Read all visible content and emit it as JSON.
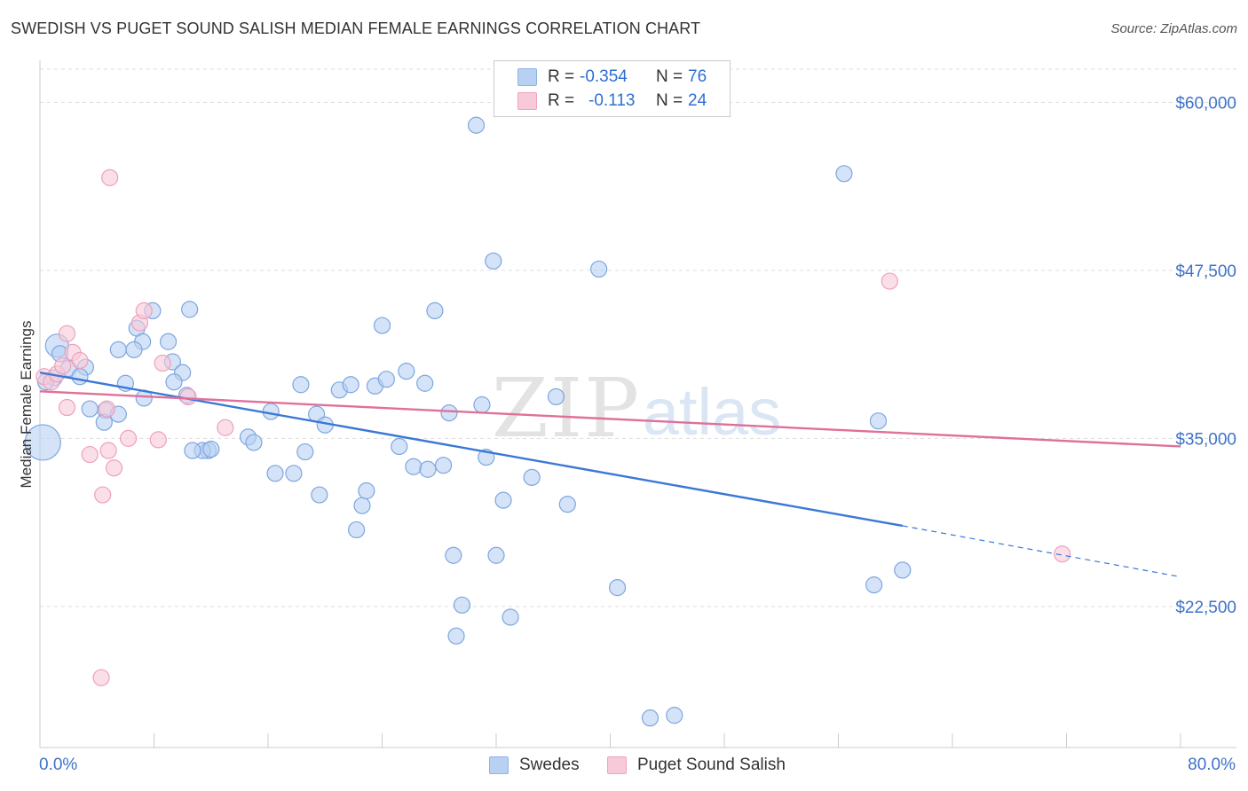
{
  "header": {
    "title": "SWEDISH VS PUGET SOUND SALISH MEDIAN FEMALE EARNINGS CORRELATION CHART",
    "source": "Source: ZipAtlas.com"
  },
  "legend": {
    "rows": [
      {
        "r_label": "R =",
        "r_value": "-0.354",
        "n_label": "N =",
        "n_value": "76",
        "color": "#8fb3e8",
        "fill": "#b8d0f2"
      },
      {
        "r_label": "R =",
        "r_value": "-0.113",
        "n_label": "N =",
        "n_value": "24",
        "color": "#f0a3bd",
        "fill": "#f8cad9"
      }
    ]
  },
  "watermark": {
    "zip": "ZIP",
    "atlas": "atlas"
  },
  "chart_data": {
    "type": "scatter",
    "xlabel": "",
    "ylabel": "Median Female Earnings",
    "xlim": [
      0,
      80
    ],
    "ylim": [
      12000,
      63000
    ],
    "x_tick_labels": [
      "0.0%",
      "80.0%"
    ],
    "y_ticks": [
      22500,
      35000,
      47500,
      60000
    ],
    "y_tick_labels": [
      "$22,500",
      "$35,000",
      "$47,500",
      "$60,000"
    ],
    "grid": "horizontal dashed",
    "legend_position": "top-center",
    "series": [
      {
        "name": "Swedes",
        "color": "#3a78d6",
        "fill": "#b8d0f2",
        "points": [
          [
            1.2,
            41.9
          ],
          [
            1.4,
            41.3
          ],
          [
            2.0,
            40.2
          ],
          [
            3.2,
            40.3
          ],
          [
            2.8,
            39.6
          ],
          [
            5.5,
            41.6
          ],
          [
            6.8,
            43.2
          ],
          [
            7.2,
            42.2
          ],
          [
            7.9,
            44.5
          ],
          [
            9.0,
            42.2
          ],
          [
            10.5,
            44.6
          ],
          [
            6.6,
            41.6
          ],
          [
            9.3,
            40.7
          ],
          [
            10.0,
            39.9
          ],
          [
            10.3,
            38.2
          ],
          [
            9.4,
            39.2
          ],
          [
            6.0,
            39.1
          ],
          [
            7.3,
            38.0
          ],
          [
            3.5,
            37.2
          ],
          [
            4.6,
            37.1
          ],
          [
            5.5,
            36.8
          ],
          [
            4.5,
            36.2
          ],
          [
            11.8,
            34.1
          ],
          [
            11.4,
            34.1
          ],
          [
            12.0,
            34.2
          ],
          [
            10.7,
            34.1
          ],
          [
            14.6,
            35.1
          ],
          [
            15.0,
            34.7
          ],
          [
            16.2,
            37.0
          ],
          [
            16.5,
            32.4
          ],
          [
            18.3,
            39.0
          ],
          [
            18.6,
            34.0
          ],
          [
            17.8,
            32.4
          ],
          [
            19.4,
            36.8
          ],
          [
            20.0,
            36.0
          ],
          [
            19.6,
            30.8
          ],
          [
            21.0,
            38.6
          ],
          [
            21.8,
            39.0
          ],
          [
            22.6,
            30.0
          ],
          [
            22.2,
            28.2
          ],
          [
            22.9,
            31.1
          ],
          [
            23.5,
            38.9
          ],
          [
            24.3,
            39.4
          ],
          [
            24.0,
            43.4
          ],
          [
            25.2,
            34.4
          ],
          [
            25.7,
            40.0
          ],
          [
            26.2,
            32.9
          ],
          [
            27.2,
            32.7
          ],
          [
            27.0,
            39.1
          ],
          [
            28.3,
            33.0
          ],
          [
            27.7,
            44.5
          ],
          [
            28.7,
            36.9
          ],
          [
            29.2,
            20.3
          ],
          [
            29.6,
            22.6
          ],
          [
            29.0,
            26.3
          ],
          [
            30.6,
            58.3
          ],
          [
            31.0,
            37.5
          ],
          [
            31.3,
            33.6
          ],
          [
            31.8,
            48.2
          ],
          [
            32.0,
            26.3
          ],
          [
            32.5,
            30.4
          ],
          [
            33.0,
            21.7
          ],
          [
            34.5,
            32.1
          ],
          [
            36.2,
            38.1
          ],
          [
            37.0,
            30.1
          ],
          [
            39.2,
            47.6
          ],
          [
            40.5,
            23.9
          ],
          [
            42.8,
            14.2
          ],
          [
            44.5,
            14.4
          ],
          [
            58.5,
            24.1
          ],
          [
            58.8,
            36.3
          ],
          [
            56.4,
            54.7
          ],
          [
            60.5,
            25.2
          ],
          [
            1.0,
            39.5
          ],
          [
            0.4,
            39.2
          ],
          [
            0.2,
            34.7
          ]
        ]
      },
      {
        "name": "Puget Sound Salish",
        "color": "#e07098",
        "fill": "#f8cad9",
        "points": [
          [
            0.3,
            39.6
          ],
          [
            0.8,
            39.2
          ],
          [
            1.2,
            39.8
          ],
          [
            1.6,
            40.4
          ],
          [
            1.9,
            42.8
          ],
          [
            2.3,
            41.4
          ],
          [
            2.8,
            40.8
          ],
          [
            1.9,
            37.3
          ],
          [
            3.5,
            33.8
          ],
          [
            4.7,
            37.2
          ],
          [
            4.9,
            54.4
          ],
          [
            4.8,
            34.1
          ],
          [
            5.2,
            32.8
          ],
          [
            4.4,
            30.8
          ],
          [
            6.2,
            35.0
          ],
          [
            7.0,
            43.6
          ],
          [
            7.3,
            44.5
          ],
          [
            8.3,
            34.9
          ],
          [
            8.6,
            40.6
          ],
          [
            10.4,
            38.1
          ],
          [
            13.0,
            35.8
          ],
          [
            4.3,
            17.2
          ],
          [
            59.6,
            46.7
          ],
          [
            71.7,
            26.4
          ]
        ]
      }
    ],
    "trend_lines": [
      {
        "series": "Swedes",
        "x": [
          0,
          60.5
        ],
        "y": [
          39.9,
          28.5
        ],
        "dashed_to": [
          80,
          24.7
        ]
      },
      {
        "series": "Puget Sound Salish",
        "x": [
          0,
          80
        ],
        "y": [
          38.5,
          34.4
        ]
      }
    ],
    "units_note": "y values in thousands of dollars"
  },
  "bottom_legend": {
    "items": [
      {
        "label": "Swedes"
      },
      {
        "label": "Puget Sound Salish"
      }
    ]
  }
}
